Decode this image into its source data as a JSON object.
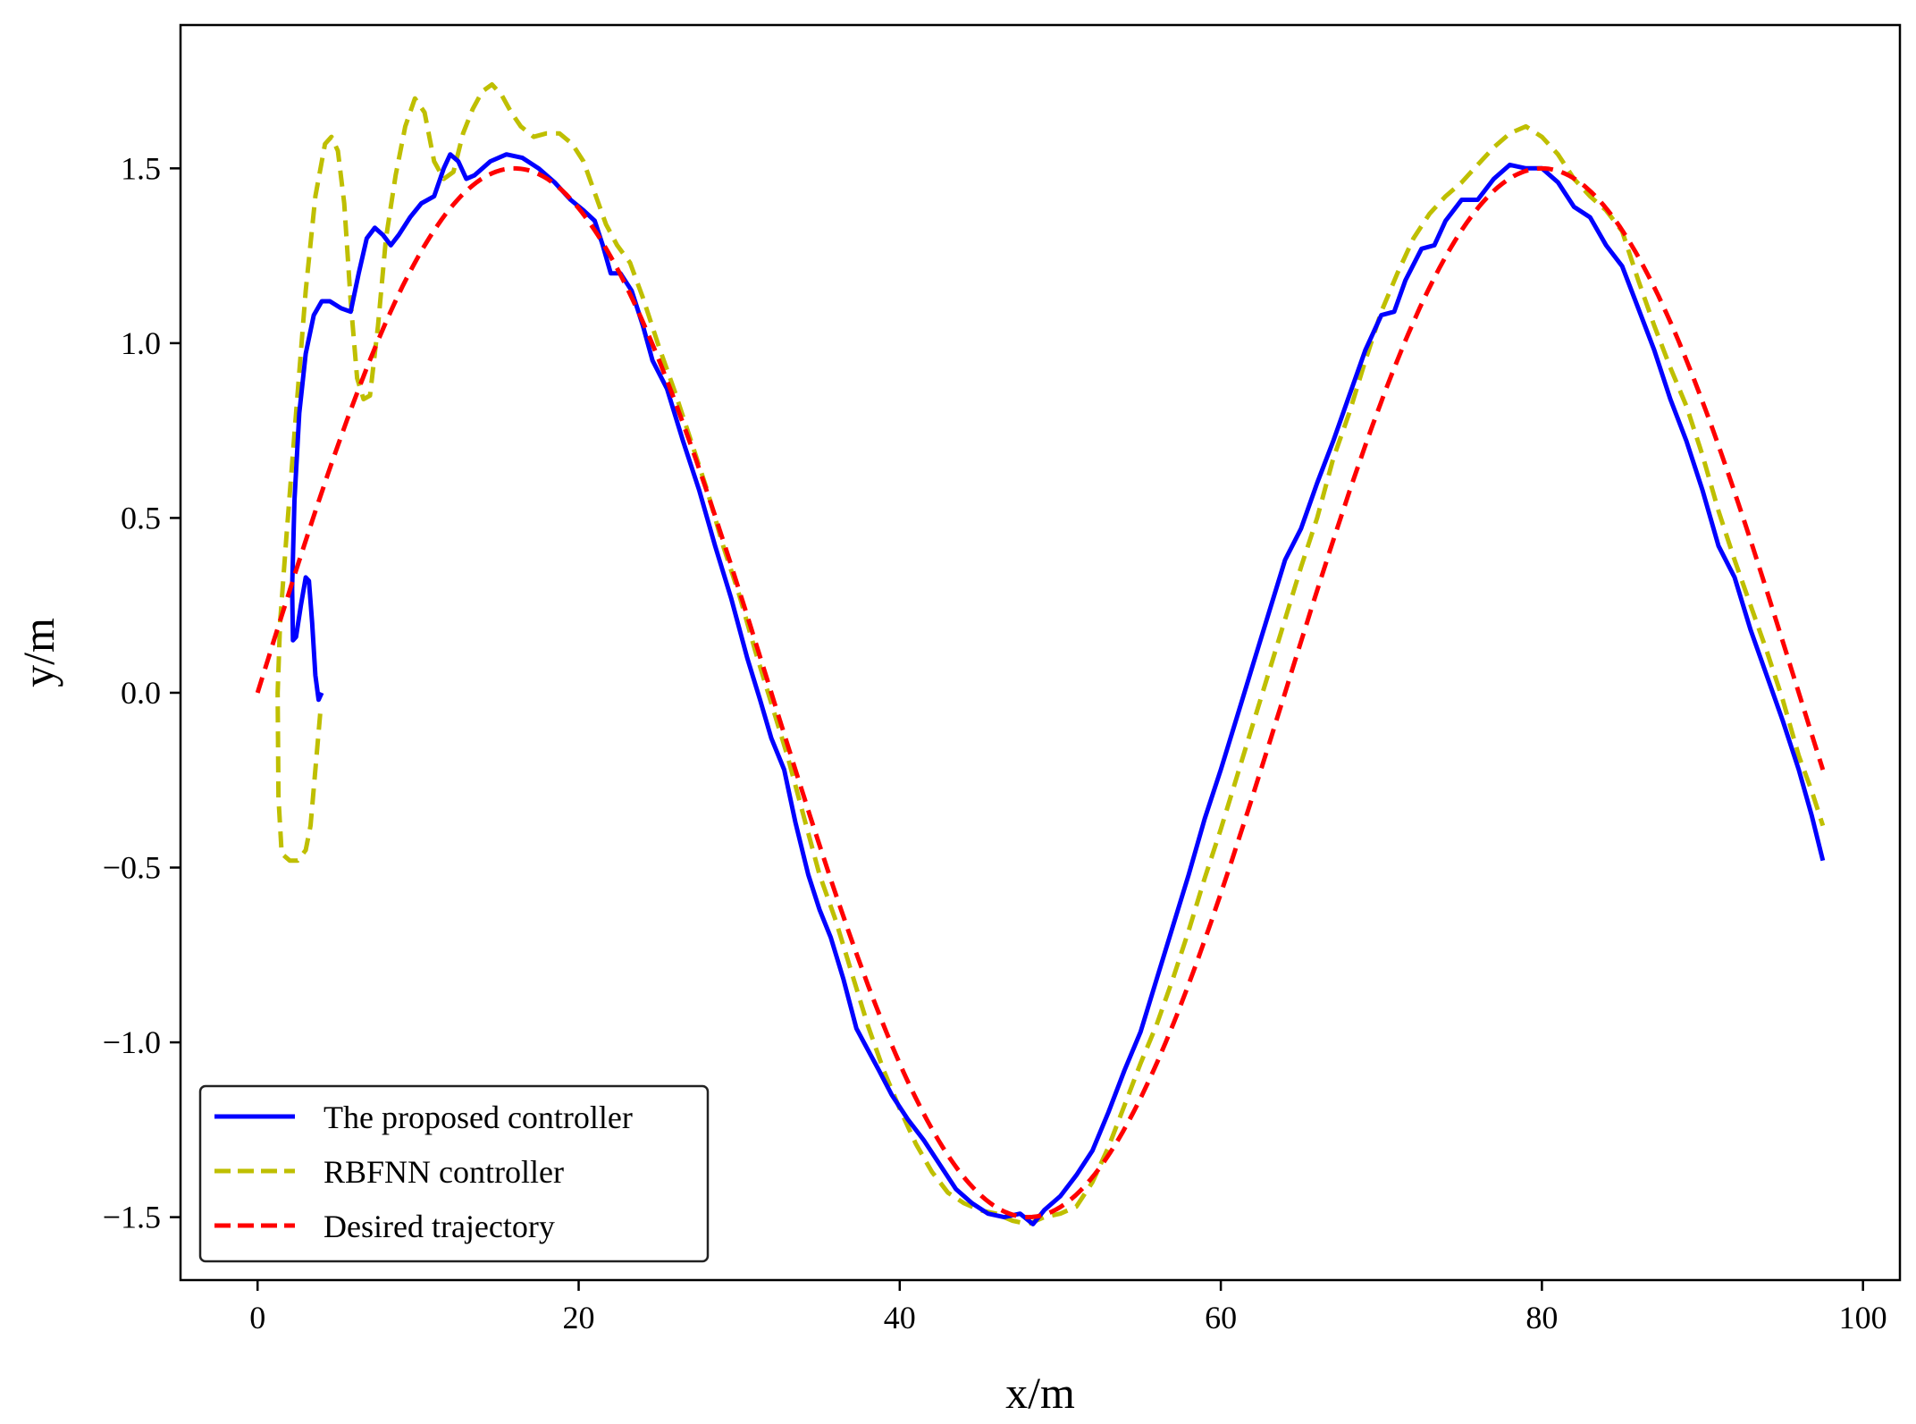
{
  "chart_data": {
    "type": "line",
    "title": "",
    "xlabel": "x/m",
    "ylabel": "y/m",
    "xlim": [
      -4.8,
      102.3
    ],
    "ylim": [
      -1.68,
      1.91
    ],
    "xticks": [
      {
        "value": 0,
        "label": "0"
      },
      {
        "value": 20,
        "label": "20"
      },
      {
        "value": 40,
        "label": "40"
      },
      {
        "value": 60,
        "label": "60"
      },
      {
        "value": 80,
        "label": "80"
      },
      {
        "value": 100,
        "label": "100"
      }
    ],
    "yticks": [
      {
        "value": -1.5,
        "label": "−1.5"
      },
      {
        "value": -1.0,
        "label": "−1.0"
      },
      {
        "value": -0.5,
        "label": "−0.5"
      },
      {
        "value": 0.0,
        "label": "0.0"
      },
      {
        "value": 0.5,
        "label": "0.5"
      },
      {
        "value": 1.0,
        "label": "1.0"
      },
      {
        "value": 1.5,
        "label": "1.5"
      }
    ],
    "grid": false,
    "legend_position": "lower-left",
    "series": [
      {
        "name": "The proposed controller",
        "color": "#0000ff",
        "style": "solid",
        "points": [
          [
            4.0,
            0.0
          ],
          [
            3.8,
            -0.02
          ],
          [
            3.6,
            0.05
          ],
          [
            3.4,
            0.2
          ],
          [
            3.2,
            0.32
          ],
          [
            3.0,
            0.33
          ],
          [
            2.7,
            0.25
          ],
          [
            2.4,
            0.16
          ],
          [
            2.2,
            0.15
          ],
          [
            2.15,
            0.3
          ],
          [
            2.3,
            0.55
          ],
          [
            2.6,
            0.8
          ],
          [
            3.0,
            0.97
          ],
          [
            3.5,
            1.08
          ],
          [
            4.0,
            1.12
          ],
          [
            4.5,
            1.12
          ],
          [
            5.2,
            1.1
          ],
          [
            5.8,
            1.09
          ],
          [
            6.3,
            1.2
          ],
          [
            6.8,
            1.3
          ],
          [
            7.3,
            1.33
          ],
          [
            7.8,
            1.31
          ],
          [
            8.3,
            1.28
          ],
          [
            8.8,
            1.31
          ],
          [
            9.5,
            1.36
          ],
          [
            10.2,
            1.4
          ],
          [
            11.0,
            1.42
          ],
          [
            11.6,
            1.5
          ],
          [
            12.0,
            1.54
          ],
          [
            12.5,
            1.52
          ],
          [
            13.0,
            1.47
          ],
          [
            13.5,
            1.48
          ],
          [
            14.5,
            1.52
          ],
          [
            15.5,
            1.54
          ],
          [
            16.5,
            1.53
          ],
          [
            17.5,
            1.5
          ],
          [
            18.5,
            1.46
          ],
          [
            19.5,
            1.41
          ],
          [
            20.3,
            1.38
          ],
          [
            21.0,
            1.35
          ],
          [
            21.5,
            1.28
          ],
          [
            22.0,
            1.2
          ],
          [
            22.6,
            1.2
          ],
          [
            23.3,
            1.15
          ],
          [
            24.0,
            1.05
          ],
          [
            24.6,
            0.95
          ],
          [
            25.5,
            0.87
          ],
          [
            26.5,
            0.72
          ],
          [
            27.5,
            0.58
          ],
          [
            28.5,
            0.42
          ],
          [
            29.5,
            0.27
          ],
          [
            30.5,
            0.1
          ],
          [
            31.3,
            -0.02
          ],
          [
            32.0,
            -0.13
          ],
          [
            32.8,
            -0.22
          ],
          [
            33.5,
            -0.37
          ],
          [
            34.3,
            -0.52
          ],
          [
            35.0,
            -0.62
          ],
          [
            35.7,
            -0.7
          ],
          [
            36.5,
            -0.82
          ],
          [
            37.3,
            -0.96
          ],
          [
            38.0,
            -1.02
          ],
          [
            38.7,
            -1.08
          ],
          [
            39.5,
            -1.15
          ],
          [
            40.5,
            -1.22
          ],
          [
            41.5,
            -1.28
          ],
          [
            42.5,
            -1.35
          ],
          [
            43.5,
            -1.42
          ],
          [
            44.5,
            -1.46
          ],
          [
            45.5,
            -1.49
          ],
          [
            46.5,
            -1.5
          ],
          [
            47.5,
            -1.49
          ],
          [
            48.3,
            -1.52
          ],
          [
            49.0,
            -1.48
          ],
          [
            50.0,
            -1.44
          ],
          [
            51.0,
            -1.38
          ],
          [
            52.0,
            -1.31
          ],
          [
            53.0,
            -1.2
          ],
          [
            54.0,
            -1.08
          ],
          [
            55.0,
            -0.97
          ],
          [
            56.0,
            -0.82
          ],
          [
            57.0,
            -0.67
          ],
          [
            58.0,
            -0.52
          ],
          [
            59.0,
            -0.36
          ],
          [
            60.0,
            -0.22
          ],
          [
            61.0,
            -0.07
          ],
          [
            62.0,
            0.08
          ],
          [
            63.0,
            0.23
          ],
          [
            64.0,
            0.38
          ],
          [
            65.0,
            0.47
          ],
          [
            66.0,
            0.6
          ],
          [
            67.0,
            0.72
          ],
          [
            68.0,
            0.85
          ],
          [
            69.0,
            0.98
          ],
          [
            70.0,
            1.08
          ],
          [
            70.8,
            1.09
          ],
          [
            71.5,
            1.18
          ],
          [
            72.5,
            1.27
          ],
          [
            73.3,
            1.28
          ],
          [
            74.0,
            1.35
          ],
          [
            75.0,
            1.41
          ],
          [
            76.0,
            1.41
          ],
          [
            77.0,
            1.47
          ],
          [
            78.0,
            1.51
          ],
          [
            79.0,
            1.5
          ],
          [
            80.0,
            1.5
          ],
          [
            81.0,
            1.46
          ],
          [
            82.0,
            1.39
          ],
          [
            83.0,
            1.36
          ],
          [
            84.0,
            1.28
          ],
          [
            85.0,
            1.22
          ],
          [
            86.0,
            1.1
          ],
          [
            87.0,
            0.98
          ],
          [
            88.0,
            0.84
          ],
          [
            89.0,
            0.72
          ],
          [
            90.0,
            0.58
          ],
          [
            91.0,
            0.42
          ],
          [
            92.0,
            0.33
          ],
          [
            93.0,
            0.18
          ],
          [
            94.0,
            0.05
          ],
          [
            95.0,
            -0.08
          ],
          [
            96.0,
            -0.22
          ],
          [
            96.8,
            -0.35
          ],
          [
            97.5,
            -0.48
          ]
        ]
      },
      {
        "name": "RBFNN controller",
        "color": "#bfbf00",
        "style": "dashed",
        "points": [
          [
            3.9,
            -0.06
          ],
          [
            3.6,
            -0.22
          ],
          [
            3.3,
            -0.38
          ],
          [
            3.0,
            -0.45
          ],
          [
            2.5,
            -0.48
          ],
          [
            2.0,
            -0.48
          ],
          [
            1.5,
            -0.46
          ],
          [
            1.3,
            -0.3
          ],
          [
            1.25,
            0.0
          ],
          [
            1.4,
            0.2
          ],
          [
            1.8,
            0.45
          ],
          [
            2.4,
            0.8
          ],
          [
            3.0,
            1.15
          ],
          [
            3.6,
            1.42
          ],
          [
            4.2,
            1.57
          ],
          [
            4.6,
            1.59
          ],
          [
            5.0,
            1.55
          ],
          [
            5.4,
            1.4
          ],
          [
            5.8,
            1.12
          ],
          [
            6.2,
            0.9
          ],
          [
            6.6,
            0.84
          ],
          [
            7.0,
            0.85
          ],
          [
            7.5,
            1.05
          ],
          [
            8.0,
            1.3
          ],
          [
            8.6,
            1.48
          ],
          [
            9.2,
            1.62
          ],
          [
            9.8,
            1.7
          ],
          [
            10.4,
            1.66
          ],
          [
            11.0,
            1.52
          ],
          [
            11.6,
            1.47
          ],
          [
            12.2,
            1.49
          ],
          [
            12.8,
            1.6
          ],
          [
            13.4,
            1.67
          ],
          [
            14.0,
            1.72
          ],
          [
            14.6,
            1.74
          ],
          [
            15.2,
            1.71
          ],
          [
            15.8,
            1.66
          ],
          [
            16.4,
            1.62
          ],
          [
            17.2,
            1.59
          ],
          [
            18.0,
            1.6
          ],
          [
            18.8,
            1.6
          ],
          [
            19.6,
            1.57
          ],
          [
            20.3,
            1.52
          ],
          [
            21.0,
            1.43
          ],
          [
            21.7,
            1.34
          ],
          [
            22.4,
            1.28
          ],
          [
            23.2,
            1.23
          ],
          [
            24.0,
            1.13
          ],
          [
            25.0,
            0.99
          ],
          [
            26.0,
            0.86
          ],
          [
            27.0,
            0.72
          ],
          [
            28.0,
            0.58
          ],
          [
            29.0,
            0.42
          ],
          [
            30.0,
            0.28
          ],
          [
            31.0,
            0.12
          ],
          [
            32.0,
            -0.03
          ],
          [
            33.0,
            -0.18
          ],
          [
            34.0,
            -0.35
          ],
          [
            35.0,
            -0.52
          ],
          [
            36.0,
            -0.65
          ],
          [
            37.0,
            -0.8
          ],
          [
            38.0,
            -0.95
          ],
          [
            39.0,
            -1.08
          ],
          [
            40.0,
            -1.19
          ],
          [
            41.0,
            -1.29
          ],
          [
            42.0,
            -1.37
          ],
          [
            43.0,
            -1.43
          ],
          [
            44.0,
            -1.46
          ],
          [
            45.0,
            -1.48
          ],
          [
            46.0,
            -1.49
          ],
          [
            47.0,
            -1.51
          ],
          [
            48.0,
            -1.52
          ],
          [
            49.0,
            -1.5
          ],
          [
            50.0,
            -1.49
          ],
          [
            51.0,
            -1.47
          ],
          [
            52.0,
            -1.4
          ],
          [
            53.0,
            -1.3
          ],
          [
            54.0,
            -1.18
          ],
          [
            55.0,
            -1.06
          ],
          [
            56.0,
            -0.95
          ],
          [
            57.0,
            -0.82
          ],
          [
            58.0,
            -0.68
          ],
          [
            59.0,
            -0.53
          ],
          [
            60.0,
            -0.39
          ],
          [
            61.0,
            -0.24
          ],
          [
            62.0,
            -0.09
          ],
          [
            63.0,
            0.06
          ],
          [
            64.0,
            0.21
          ],
          [
            65.0,
            0.36
          ],
          [
            66.0,
            0.5
          ],
          [
            67.0,
            0.67
          ],
          [
            68.0,
            0.8
          ],
          [
            69.0,
            0.95
          ],
          [
            70.0,
            1.09
          ],
          [
            71.0,
            1.2
          ],
          [
            72.0,
            1.3
          ],
          [
            73.0,
            1.37
          ],
          [
            74.0,
            1.42
          ],
          [
            75.0,
            1.46
          ],
          [
            76.0,
            1.51
          ],
          [
            77.0,
            1.56
          ],
          [
            78.0,
            1.6
          ],
          [
            79.0,
            1.62
          ],
          [
            80.0,
            1.59
          ],
          [
            81.0,
            1.54
          ],
          [
            82.0,
            1.47
          ],
          [
            83.0,
            1.42
          ],
          [
            84.0,
            1.38
          ],
          [
            85.0,
            1.32
          ],
          [
            86.0,
            1.18
          ],
          [
            87.0,
            1.05
          ],
          [
            88.0,
            0.93
          ],
          [
            89.0,
            0.82
          ],
          [
            90.0,
            0.68
          ],
          [
            91.0,
            0.52
          ],
          [
            92.0,
            0.38
          ],
          [
            93.0,
            0.25
          ],
          [
            94.0,
            0.12
          ],
          [
            95.0,
            -0.02
          ],
          [
            96.0,
            -0.18
          ],
          [
            96.8,
            -0.28
          ],
          [
            97.5,
            -0.38
          ]
        ]
      },
      {
        "name": "Desired trajectory",
        "color": "#ff0000",
        "style": "dashed",
        "function": "1.5*sin(pi*x/32)",
        "xrange": [
          0,
          97.5
        ]
      }
    ]
  }
}
